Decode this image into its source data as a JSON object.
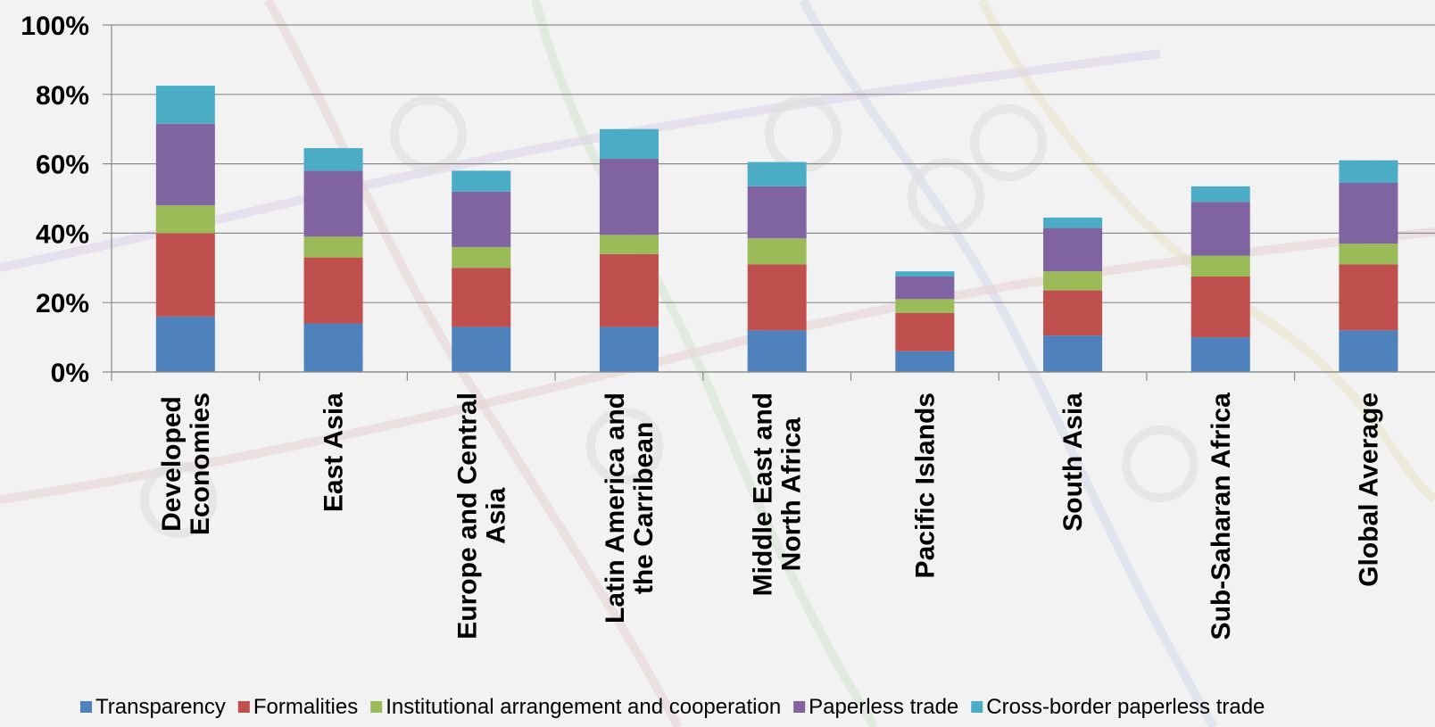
{
  "chart_data": {
    "type": "bar",
    "stacked": true,
    "title": "",
    "xlabel": "",
    "ylabel": "",
    "ylim": [
      0,
      100
    ],
    "yticks": [
      "0%",
      "20%",
      "40%",
      "60%",
      "80%",
      "100%"
    ],
    "grid": true,
    "legend_position": "bottom",
    "categories": [
      [
        "Developed",
        "Economies"
      ],
      [
        "East Asia"
      ],
      [
        "Europe and Central",
        "Asia"
      ],
      [
        "Latin America and",
        "the Carribean"
      ],
      [
        "Middle East and",
        "North Africa"
      ],
      [
        "Pacific Islands"
      ],
      [
        "South Asia"
      ],
      [
        "Sub-Saharan Africa"
      ],
      [
        "Global Average"
      ]
    ],
    "series": [
      {
        "name": "Transparency",
        "color": "#4f81bd",
        "values": [
          16,
          14,
          13,
          13,
          12,
          6,
          10.5,
          10,
          12
        ]
      },
      {
        "name": "Formalities",
        "color": "#c0504d",
        "values": [
          24,
          19,
          17,
          21,
          19,
          11,
          13,
          17.5,
          19
        ]
      },
      {
        "name": "Institutional arrangement and cooperation",
        "color": "#9bbb59",
        "values": [
          8,
          6,
          6,
          5.5,
          7.5,
          4,
          5.5,
          6,
          6
        ]
      },
      {
        "name": "Paperless trade",
        "color": "#8064a2",
        "values": [
          23.5,
          19,
          16,
          22,
          15,
          6.5,
          12.5,
          15.5,
          17.5
        ]
      },
      {
        "name": "Cross-border paperless trade",
        "color": "#4bacc6",
        "values": [
          11,
          6.5,
          6,
          8.5,
          7,
          1.5,
          3,
          4.5,
          6.5
        ]
      }
    ]
  }
}
